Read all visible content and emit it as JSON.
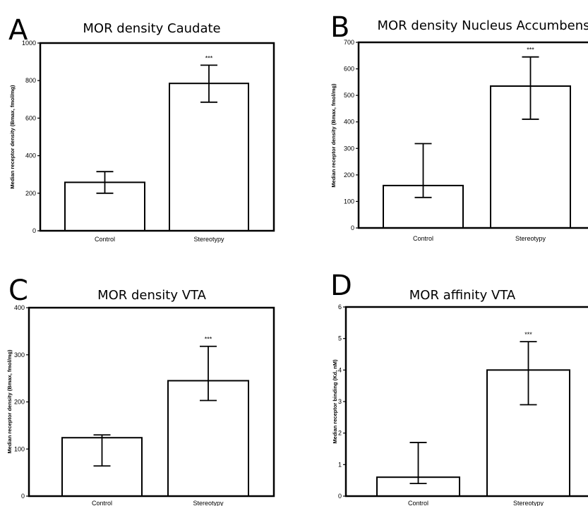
{
  "chart_data": [
    {
      "type": "bar",
      "panel": "A",
      "title": "MOR density Caudate",
      "ylabel": "Median receptor density (Bmax, fmol/mg)",
      "categories": [
        "Control",
        "Stereotypy"
      ],
      "values": [
        258,
        785
      ],
      "errors": [
        [
          200,
          315
        ],
        [
          685,
          882
        ]
      ],
      "annotations": [
        "",
        "***"
      ],
      "ylim": [
        0,
        1000
      ],
      "yticks": [
        0,
        200,
        400,
        600,
        800,
        1000
      ]
    },
    {
      "type": "bar",
      "panel": "B",
      "title": "MOR density Nucleus Accumbens",
      "ylabel": "Median receptor density (Bmax, fmol/mg)",
      "categories": [
        "Control",
        "Stereotypy"
      ],
      "values": [
        160,
        535
      ],
      "errors": [
        [
          115,
          318
        ],
        [
          410,
          645
        ]
      ],
      "annotations": [
        "",
        "***"
      ],
      "ylim": [
        0,
        700
      ],
      "yticks": [
        0,
        100,
        200,
        300,
        400,
        500,
        600,
        700
      ]
    },
    {
      "type": "bar",
      "panel": "C",
      "title": "MOR density VTA",
      "ylabel": "Median receptor density (Bmax, fmol/mg)",
      "categories": [
        "Control",
        "Stereotypy"
      ],
      "values": [
        124,
        245
      ],
      "errors": [
        [
          64,
          130
        ],
        [
          203,
          318
        ]
      ],
      "annotations": [
        "",
        "***"
      ],
      "ylim": [
        0,
        400
      ],
      "yticks": [
        0,
        100,
        200,
        300,
        400
      ]
    },
    {
      "type": "bar",
      "panel": "D",
      "title": "MOR affinity VTA",
      "ylabel": "Median receptor binding (Kd, nM)",
      "categories": [
        "Control",
        "Stereotypy"
      ],
      "values": [
        0.6,
        4.0
      ],
      "errors": [
        [
          0.4,
          1.7
        ],
        [
          2.9,
          4.9
        ]
      ],
      "annotations": [
        "",
        "***"
      ],
      "ylim": [
        0,
        6
      ],
      "yticks": [
        0,
        1,
        2,
        3,
        4,
        5,
        6
      ]
    }
  ]
}
